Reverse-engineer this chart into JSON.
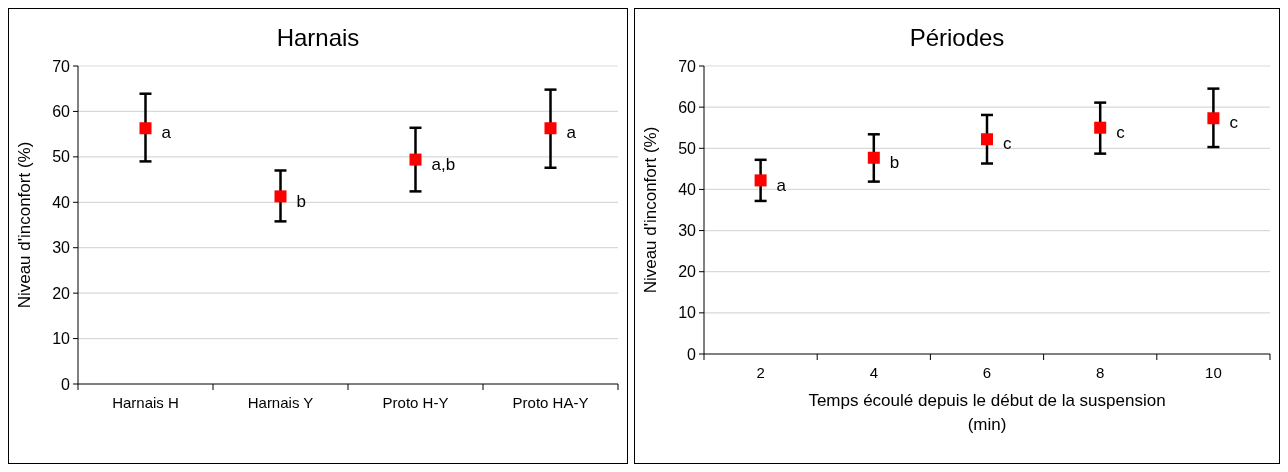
{
  "chart_data": [
    {
      "type": "scatter",
      "title": "Harnais",
      "ylabel": "Niveau d'inconfort (%)",
      "categories": [
        "Harnais H",
        "Harnais Y",
        "Proto H-Y",
        "Proto HA-Y"
      ],
      "series": [
        {
          "color": "#ff0000",
          "values": [
            56.3,
            41.3,
            49.4,
            56.3
          ],
          "errors": [
            [
              49.0,
              63.9
            ],
            [
              35.8,
              47.0
            ],
            [
              42.4,
              56.4
            ],
            [
              47.6,
              64.8
            ]
          ]
        }
      ],
      "ylim": [
        0,
        70
      ],
      "yticks": [
        0,
        10,
        20,
        30,
        40,
        50,
        60,
        70
      ],
      "grid": "y",
      "marker": "square",
      "annotations": [
        {
          "text": "a",
          "x": "Harnais H",
          "y": 56.3
        },
        {
          "text": "b",
          "x": "Harnais Y",
          "y": 41.3
        },
        {
          "text": "a,b",
          "x": "Proto H-Y",
          "y": 49.4
        },
        {
          "text": "a",
          "x": "Proto HA-Y",
          "y": 56.3
        }
      ]
    },
    {
      "type": "scatter",
      "title": "Périodes",
      "xlabel": "Temps écoulé depuis le début de la suspension (min)",
      "ylabel": "Niveau d'inconfort (%)",
      "categories": [
        "2",
        "4",
        "6",
        "8",
        "10"
      ],
      "series": [
        {
          "color": "#ff0000",
          "values": [
            42.2,
            47.7,
            52.2,
            55.0,
            57.3
          ],
          "errors": [
            [
              37.2,
              47.2
            ],
            [
              41.9,
              53.4
            ],
            [
              46.3,
              58.1
            ],
            [
              48.7,
              61.1
            ],
            [
              50.3,
              64.5
            ]
          ]
        }
      ],
      "ylim": [
        0,
        70
      ],
      "yticks": [
        0,
        10,
        20,
        30,
        40,
        50,
        60,
        70
      ],
      "grid": "y",
      "marker": "square",
      "annotations": [
        {
          "text": "a",
          "x": "2",
          "y": 42.2
        },
        {
          "text": "b",
          "x": "4",
          "y": 47.7
        },
        {
          "text": "c",
          "x": "6",
          "y": 52.2
        },
        {
          "text": "c",
          "x": "8",
          "y": 55.0
        },
        {
          "text": "c",
          "x": "10",
          "y": 57.3
        }
      ]
    }
  ]
}
